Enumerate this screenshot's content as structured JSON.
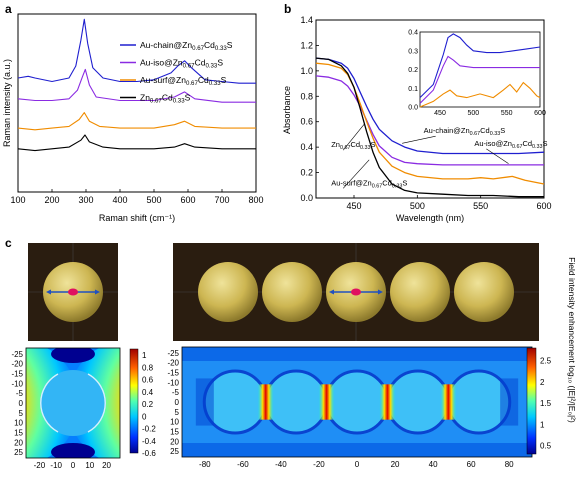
{
  "panels": {
    "a": "a",
    "b": "b",
    "c": "c"
  },
  "colors": {
    "au_chain": "#1f1fcf",
    "au_iso": "#8a2be2",
    "au_surf": "#f08c00",
    "pure": "#000000",
    "sphere": "#c9b44a",
    "box": "#2a1d10",
    "arrow": "#2050c0",
    "dot": "#e01060"
  },
  "chart_data": [
    {
      "id": "a",
      "type": "line",
      "title": "",
      "xlabel": "Raman shift (cm⁻¹)",
      "ylabel": "Raman intensity (a.u.)",
      "xlim": [
        100,
        800
      ],
      "xticks": [
        100,
        200,
        300,
        400,
        500,
        600,
        700,
        800
      ],
      "legend_position": "top-right",
      "series": [
        {
          "name": "Au-chain@Zn0.67Cd0.33S",
          "legend": [
            "Au-chain@Zn",
            "0.67",
            "Cd",
            "0.33",
            "S"
          ],
          "color": "#1f1fcf",
          "x": [
            100,
            130,
            150,
            200,
            250,
            270,
            285,
            295,
            305,
            320,
            350,
            400,
            450,
            500,
            550,
            570,
            590,
            610,
            650,
            700,
            750,
            800
          ],
          "y": [
            0.66,
            0.67,
            0.66,
            0.64,
            0.66,
            0.73,
            0.88,
            1.0,
            0.86,
            0.72,
            0.66,
            0.64,
            0.64,
            0.65,
            0.69,
            0.73,
            0.76,
            0.72,
            0.65,
            0.64,
            0.63,
            0.63
          ]
        },
        {
          "name": "Au-iso@Zn0.67Cd0.33S",
          "legend": [
            "Au-iso@Zn",
            "0.67",
            "Cd",
            "0.33",
            "S"
          ],
          "color": "#8a2be2",
          "x": [
            100,
            150,
            200,
            250,
            275,
            290,
            298,
            310,
            330,
            400,
            500,
            560,
            590,
            620,
            700,
            800
          ],
          "y": [
            0.54,
            0.53,
            0.53,
            0.54,
            0.59,
            0.67,
            0.71,
            0.62,
            0.55,
            0.53,
            0.53,
            0.55,
            0.58,
            0.54,
            0.52,
            0.52
          ]
        },
        {
          "name": "Au-surf@Zn0.67Cd0.33S",
          "legend": [
            "Au-surf@Zn",
            "0.67",
            "Cd",
            "0.33",
            "S"
          ],
          "color": "#f08c00",
          "x": [
            100,
            150,
            200,
            250,
            280,
            295,
            310,
            340,
            400,
            500,
            560,
            590,
            620,
            700,
            800
          ],
          "y": [
            0.37,
            0.36,
            0.37,
            0.38,
            0.42,
            0.46,
            0.41,
            0.38,
            0.37,
            0.37,
            0.39,
            0.41,
            0.38,
            0.37,
            0.37
          ]
        },
        {
          "name": "Zn0.67Cd0.33S",
          "legend": [
            "Zn",
            "0.67",
            "Cd",
            "0.33",
            "S"
          ],
          "color": "#000000",
          "x": [
            100,
            150,
            200,
            250,
            285,
            297,
            310,
            350,
            400,
            500,
            560,
            590,
            620,
            700,
            800
          ],
          "y": [
            0.25,
            0.24,
            0.25,
            0.26,
            0.3,
            0.33,
            0.29,
            0.26,
            0.25,
            0.25,
            0.26,
            0.28,
            0.26,
            0.25,
            0.25
          ]
        }
      ]
    },
    {
      "id": "b",
      "type": "line",
      "title": "",
      "xlabel": "Wavelength (nm)",
      "ylabel": "Absorbance",
      "xlim": [
        420,
        600
      ],
      "ylim": [
        0.0,
        1.4
      ],
      "xticks": [
        450,
        500,
        550,
        600
      ],
      "yticks": [
        0.0,
        0.2,
        0.4,
        0.6,
        0.8,
        1.0,
        1.2,
        1.4
      ],
      "series": [
        {
          "name": "Au-chain@Zn0.67Cd0.33S",
          "color": "#1f1fcf",
          "x": [
            420,
            430,
            440,
            445,
            450,
            455,
            460,
            465,
            470,
            480,
            490,
            500,
            520,
            540,
            560,
            580,
            600
          ],
          "y": [
            1.1,
            1.09,
            1.06,
            1.02,
            0.94,
            0.83,
            0.72,
            0.62,
            0.54,
            0.45,
            0.4,
            0.37,
            0.35,
            0.35,
            0.35,
            0.35,
            0.36
          ]
        },
        {
          "name": "Au-iso@Zn0.67Cd0.33S",
          "color": "#8a2be2",
          "x": [
            420,
            430,
            440,
            445,
            450,
            455,
            460,
            465,
            470,
            480,
            490,
            500,
            520,
            540,
            560,
            580,
            600
          ],
          "y": [
            0.96,
            0.95,
            0.92,
            0.88,
            0.81,
            0.72,
            0.61,
            0.5,
            0.41,
            0.32,
            0.28,
            0.27,
            0.26,
            0.26,
            0.26,
            0.26,
            0.26
          ]
        },
        {
          "name": "Au-surf@Zn0.67Cd0.33S",
          "color": "#f08c00",
          "x": [
            420,
            430,
            440,
            445,
            450,
            455,
            460,
            465,
            470,
            480,
            490,
            500,
            520,
            540,
            550,
            560,
            575,
            585,
            600
          ],
          "y": [
            1.06,
            1.05,
            1.02,
            0.97,
            0.87,
            0.74,
            0.6,
            0.47,
            0.36,
            0.25,
            0.2,
            0.17,
            0.15,
            0.15,
            0.16,
            0.15,
            0.17,
            0.14,
            0.11
          ]
        },
        {
          "name": "Zn0.67Cd0.33S",
          "color": "#000000",
          "x": [
            420,
            430,
            440,
            445,
            450,
            455,
            460,
            465,
            470,
            480,
            490,
            500,
            520,
            540,
            560,
            580,
            600
          ],
          "y": [
            1.1,
            1.09,
            1.04,
            0.98,
            0.87,
            0.7,
            0.52,
            0.36,
            0.24,
            0.11,
            0.06,
            0.04,
            0.03,
            0.02,
            0.02,
            0.01,
            0.01
          ]
        }
      ],
      "annotations": [
        {
          "parts": [
            "Au-chain@Zn",
            "0.67",
            "Cd",
            "0.33",
            "S"
          ],
          "x": 505,
          "y": 0.51,
          "arrow_to": [
            488,
            0.43
          ]
        },
        {
          "parts": [
            "Au-iso@Zn",
            "0.67",
            "Cd",
            "0.33",
            "S"
          ],
          "x": 545,
          "y": 0.41,
          "arrow_to": [
            572,
            0.27
          ]
        },
        {
          "parts": [
            "Zn",
            "0.67",
            "Cd",
            "0.33",
            "S"
          ],
          "x": 432,
          "y": 0.4,
          "arrow_to": [
            458,
            0.58
          ]
        },
        {
          "parts": [
            "Au-surf@Zn",
            "0.67",
            "Cd",
            "0.33",
            "S"
          ],
          "x": 432,
          "y": 0.1,
          "arrow_to": [
            462,
            0.3
          ]
        }
      ],
      "inset": {
        "xlim": [
          420,
          600
        ],
        "ylim": [
          0.0,
          0.4
        ],
        "xticks": [
          450,
          500,
          550,
          600
        ],
        "yticks": [
          0.0,
          0.1,
          0.2,
          0.3,
          0.4
        ],
        "series": [
          {
            "color": "#1f1fcf",
            "x": [
              420,
              440,
              455,
              462,
              470,
              480,
              490,
              500,
              520,
              540,
              560,
              580,
              600
            ],
            "y": [
              0.05,
              0.12,
              0.28,
              0.37,
              0.39,
              0.37,
              0.33,
              0.3,
              0.29,
              0.29,
              0.3,
              0.31,
              0.32
            ]
          },
          {
            "color": "#8a2be2",
            "x": [
              420,
              440,
              455,
              462,
              470,
              480,
              500,
              520,
              560,
              600
            ],
            "y": [
              0.02,
              0.09,
              0.22,
              0.27,
              0.25,
              0.22,
              0.21,
              0.21,
              0.21,
              0.21
            ]
          },
          {
            "color": "#f08c00",
            "x": [
              420,
              440,
              455,
              465,
              475,
              490,
              510,
              530,
              545,
              555,
              565,
              575,
              585,
              595,
              600
            ],
            "y": [
              -0.02,
              0.03,
              0.07,
              0.09,
              0.06,
              0.05,
              0.07,
              0.05,
              0.09,
              0.12,
              0.08,
              0.13,
              0.1,
              0.06,
              0.05
            ]
          }
        ]
      }
    },
    {
      "id": "c-left",
      "type": "heatmap",
      "xticks": [
        -20,
        -10,
        0,
        10,
        20
      ],
      "yticks": [
        -25,
        -20,
        -15,
        -10,
        -5,
        0,
        5,
        10,
        15,
        20,
        25
      ],
      "colorbar_ticks": [
        1,
        0.8,
        0.6,
        0.4,
        0.2,
        0,
        -0.2,
        -0.4,
        -0.6
      ],
      "zlim": [
        -0.6,
        1.1
      ],
      "spheres": 1
    },
    {
      "id": "c-right",
      "type": "heatmap",
      "xticks": [
        -80,
        -60,
        -40,
        -20,
        0,
        20,
        40,
        60,
        80
      ],
      "yticks": [
        -25,
        -20,
        -15,
        -10,
        -5,
        0,
        5,
        10,
        15,
        20,
        25
      ],
      "colorbar_ticks": [
        2.5,
        2,
        1.5,
        1,
        0.5
      ],
      "zlim": [
        0.3,
        2.8
      ],
      "spheres": 5,
      "colorbar_label": "Field intensity enhancement log₁₀ (|E|²/|E₀|²)"
    }
  ]
}
